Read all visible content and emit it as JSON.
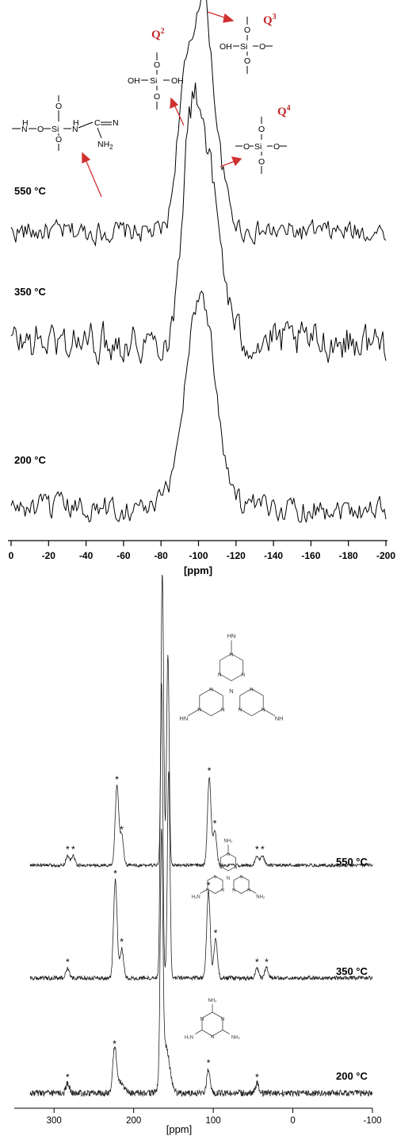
{
  "chart_data": [
    {
      "type": "line",
      "xlabel": "[ppm]",
      "x_ticks": [
        0,
        -20,
        -40,
        -60,
        -80,
        -100,
        -120,
        -140,
        -160,
        -180,
        -200
      ],
      "xlim": [
        0,
        -200
      ],
      "series": [
        {
          "name": "550 °C",
          "peaks": [
            {
              "ppm": -92,
              "rel": 0.55
            },
            {
              "ppm": -102,
              "rel": 1.0
            },
            {
              "ppm": -111,
              "rel": 0.2
            }
          ]
        },
        {
          "name": "350 °C",
          "peaks": [
            {
              "ppm": -94,
              "rel": 0.7
            },
            {
              "ppm": -101,
              "rel": 1.0
            },
            {
              "ppm": -110,
              "rel": 0.45
            }
          ]
        },
        {
          "name": "200 °C",
          "peaks": [
            {
              "ppm": -101,
              "rel": 1.0
            }
          ]
        }
      ],
      "annotations": [
        {
          "label": "Q2",
          "super": "2",
          "text": "Q"
        },
        {
          "label": "Q3",
          "super": "3",
          "text": "Q"
        },
        {
          "label": "Q4",
          "super": "4",
          "text": "Q"
        }
      ],
      "arrow_color": "#d13030",
      "label_color": "#c0282d"
    },
    {
      "type": "line",
      "xlabel": "[ppm]",
      "x_ticks": [
        300,
        200,
        100,
        0,
        -100
      ],
      "xlim": [
        350,
        -100
      ],
      "series": [
        {
          "name": "550 °C",
          "peaks": [
            {
              "ppm": 164,
              "rel": 1.0
            },
            {
              "ppm": 157,
              "rel": 0.72
            },
            {
              "ppm": 221,
              "rel": 0.27
            },
            {
              "ppm": 215,
              "rel": 0.1
            },
            {
              "ppm": 105,
              "rel": 0.3
            },
            {
              "ppm": 98,
              "rel": 0.12
            }
          ],
          "spinning_sidebands_ppm": [
            283,
            276,
            221,
            215,
            105,
            98,
            45,
            38
          ]
        },
        {
          "name": "350 °C",
          "peaks": [
            {
              "ppm": 165,
              "rel": 1.0
            },
            {
              "ppm": 156,
              "rel": 0.7
            },
            {
              "ppm": 223,
              "rel": 0.33
            },
            {
              "ppm": 215,
              "rel": 0.1
            },
            {
              "ppm": 106,
              "rel": 0.29
            },
            {
              "ppm": 97,
              "rel": 0.13
            }
          ],
          "spinning_sidebands_ppm": [
            283,
            223,
            215,
            106,
            97,
            45,
            33
          ]
        },
        {
          "name": "200 °C",
          "peaks": [
            {
              "ppm": 165,
              "rel": 1.0
            },
            {
              "ppm": 224,
              "rel": 0.18
            },
            {
              "ppm": 106,
              "rel": 0.1
            }
          ],
          "spinning_sidebands_ppm": [
            283,
            224,
            106,
            45
          ]
        }
      ]
    }
  ],
  "top": {
    "temps": [
      "550 °C",
      "350 °C",
      "200 °C"
    ],
    "xlabel": "[ppm]",
    "ticks": [
      "0",
      "-20",
      "-40",
      "-60",
      "-80",
      "-100",
      "-120",
      "-140",
      "-160",
      "-180",
      "-200"
    ],
    "q2": "Q",
    "q2sup": "2",
    "q3": "Q",
    "q3sup": "3",
    "q4": "Q",
    "q4sup": "4",
    "chem": {
      "oh": "OH",
      "si": "Si",
      "o": "O",
      "h": "H",
      "n": "N",
      "c": "C",
      "nh2": "NH",
      "sub2": "2"
    }
  },
  "bottom": {
    "temps": [
      "550 °C",
      "350 °C",
      "200 °C"
    ],
    "xlabel": "[ppm]",
    "ticks": [
      "300",
      "200",
      "100",
      "0",
      "-100"
    ],
    "star": "*",
    "chem": {
      "n": "N",
      "nh": "HN",
      "nh_r": "NH",
      "nh2": "NH₂",
      "h2n": "H₂N"
    }
  }
}
